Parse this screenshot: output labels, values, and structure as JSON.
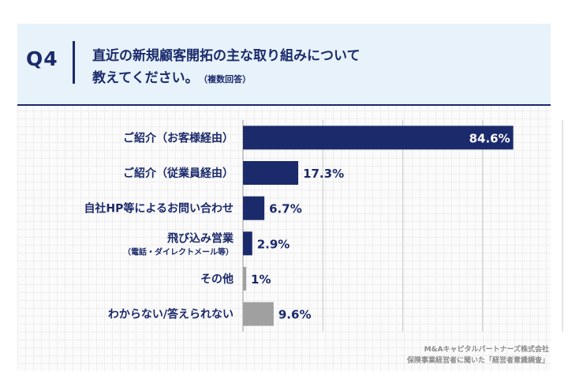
{
  "question": {
    "number": "Q4",
    "line1": "直近の新規顧客開拓の主な取り組みについて",
    "line2": "教えてください。",
    "note": "（複数回答）"
  },
  "chart_data": {
    "type": "bar",
    "orientation": "horizontal",
    "categories": [
      [
        "ご紹介（お客様経由）"
      ],
      [
        "ご紹介（従業員経由）"
      ],
      [
        "自社HP等によるお問い合わせ"
      ],
      [
        "飛び込み営業",
        "（電話・ダイレクトメール等）"
      ],
      [
        "その他"
      ],
      [
        "わからない/答えられない"
      ]
    ],
    "values": [
      84.6,
      17.3,
      6.7,
      2.9,
      1,
      9.6
    ],
    "value_labels": [
      "84.6%",
      "17.3%",
      "6.7%",
      "2.9%",
      "1%",
      "9.6%"
    ],
    "bar_colors": [
      "#1b2a6b",
      "#1b2a6b",
      "#1b2a6b",
      "#1b2a6b",
      "#a0a0a0",
      "#a0a0a0"
    ],
    "label_color": "#1b2a6b",
    "grid_color": "#c8c8c8",
    "xlim": [
      0,
      100
    ],
    "grid": true
  },
  "credit": {
    "line1": "M&Aキャピタルパートナーズ株式会社",
    "line2": "保険事業経営者に聞いた「経営者意識調査」"
  }
}
